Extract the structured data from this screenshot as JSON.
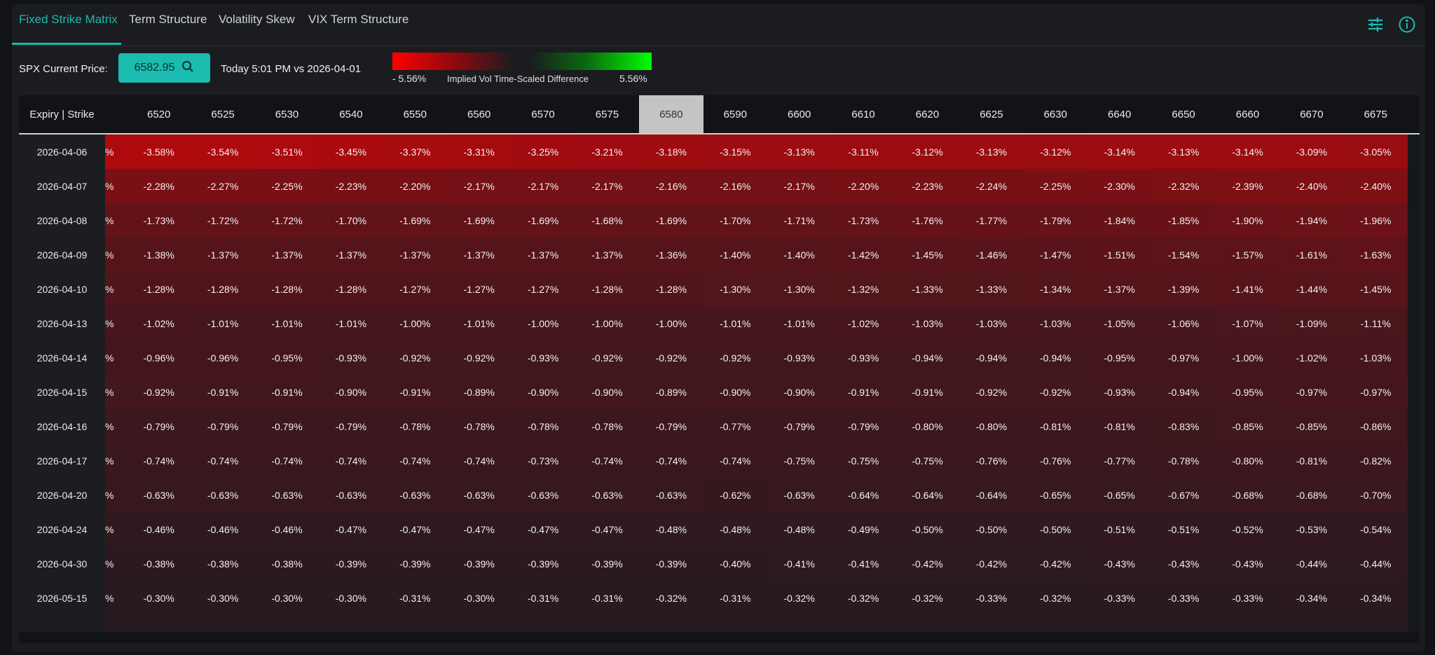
{
  "tabs": [
    {
      "label": "Fixed Strike Matrix",
      "active": true
    },
    {
      "label": "Term Structure",
      "active": false
    },
    {
      "label": "Volatility Skew",
      "active": false
    },
    {
      "label": "VIX Term Structure",
      "active": false
    }
  ],
  "toolbar": {
    "price_label": "SPX Current Price:",
    "price_value": "6582.95",
    "comparison": "Today 5:01 PM vs 2026-04-01",
    "legend_min": "- 5.56%",
    "legend_title": "Implied Vol Time-Scaled Difference",
    "legend_max": "5.56%",
    "scale_max": 5.56
  },
  "colors": {
    "accent": "#1abcb0",
    "negative": "#ff0000",
    "positive": "#00ff00",
    "highlight": "#c4c4c4"
  },
  "table": {
    "corner_label": "Expiry | Strike",
    "partial_column_text": "%",
    "highlight_strike": "6580",
    "strikes": [
      "6520",
      "6525",
      "6530",
      "6540",
      "6550",
      "6560",
      "6570",
      "6575",
      "6580",
      "6590",
      "6600",
      "6610",
      "6620",
      "6625",
      "6630",
      "6640",
      "6650",
      "6660",
      "6670",
      "6675"
    ],
    "rows": [
      {
        "expiry": "2026-04-06",
        "values": [
          "-3.58%",
          "-3.54%",
          "-3.51%",
          "-3.45%",
          "-3.37%",
          "-3.31%",
          "-3.25%",
          "-3.21%",
          "-3.18%",
          "-3.15%",
          "-3.13%",
          "-3.11%",
          "-3.12%",
          "-3.13%",
          "-3.12%",
          "-3.14%",
          "-3.13%",
          "-3.14%",
          "-3.09%",
          "-3.05%"
        ]
      },
      {
        "expiry": "2026-04-07",
        "values": [
          "-2.28%",
          "-2.27%",
          "-2.25%",
          "-2.23%",
          "-2.20%",
          "-2.17%",
          "-2.17%",
          "-2.17%",
          "-2.16%",
          "-2.16%",
          "-2.17%",
          "-2.20%",
          "-2.23%",
          "-2.24%",
          "-2.25%",
          "-2.30%",
          "-2.32%",
          "-2.39%",
          "-2.40%",
          "-2.40%"
        ]
      },
      {
        "expiry": "2026-04-08",
        "values": [
          "-1.73%",
          "-1.72%",
          "-1.72%",
          "-1.70%",
          "-1.69%",
          "-1.69%",
          "-1.69%",
          "-1.68%",
          "-1.69%",
          "-1.70%",
          "-1.71%",
          "-1.73%",
          "-1.76%",
          "-1.77%",
          "-1.79%",
          "-1.84%",
          "-1.85%",
          "-1.90%",
          "-1.94%",
          "-1.96%"
        ]
      },
      {
        "expiry": "2026-04-09",
        "values": [
          "-1.38%",
          "-1.37%",
          "-1.37%",
          "-1.37%",
          "-1.37%",
          "-1.37%",
          "-1.37%",
          "-1.37%",
          "-1.36%",
          "-1.40%",
          "-1.40%",
          "-1.42%",
          "-1.45%",
          "-1.46%",
          "-1.47%",
          "-1.51%",
          "-1.54%",
          "-1.57%",
          "-1.61%",
          "-1.63%"
        ]
      },
      {
        "expiry": "2026-04-10",
        "values": [
          "-1.28%",
          "-1.28%",
          "-1.28%",
          "-1.28%",
          "-1.27%",
          "-1.27%",
          "-1.27%",
          "-1.28%",
          "-1.28%",
          "-1.30%",
          "-1.30%",
          "-1.32%",
          "-1.33%",
          "-1.33%",
          "-1.34%",
          "-1.37%",
          "-1.39%",
          "-1.41%",
          "-1.44%",
          "-1.45%"
        ]
      },
      {
        "expiry": "2026-04-13",
        "values": [
          "-1.02%",
          "-1.01%",
          "-1.01%",
          "-1.01%",
          "-1.00%",
          "-1.01%",
          "-1.00%",
          "-1.00%",
          "-1.00%",
          "-1.01%",
          "-1.01%",
          "-1.02%",
          "-1.03%",
          "-1.03%",
          "-1.03%",
          "-1.05%",
          "-1.06%",
          "-1.07%",
          "-1.09%",
          "-1.11%"
        ]
      },
      {
        "expiry": "2026-04-14",
        "values": [
          "-0.96%",
          "-0.96%",
          "-0.95%",
          "-0.93%",
          "-0.92%",
          "-0.92%",
          "-0.93%",
          "-0.92%",
          "-0.92%",
          "-0.92%",
          "-0.93%",
          "-0.93%",
          "-0.94%",
          "-0.94%",
          "-0.94%",
          "-0.95%",
          "-0.97%",
          "-1.00%",
          "-1.02%",
          "-1.03%"
        ]
      },
      {
        "expiry": "2026-04-15",
        "values": [
          "-0.92%",
          "-0.91%",
          "-0.91%",
          "-0.90%",
          "-0.91%",
          "-0.89%",
          "-0.90%",
          "-0.90%",
          "-0.89%",
          "-0.90%",
          "-0.90%",
          "-0.91%",
          "-0.91%",
          "-0.92%",
          "-0.92%",
          "-0.93%",
          "-0.94%",
          "-0.95%",
          "-0.97%",
          "-0.97%"
        ]
      },
      {
        "expiry": "2026-04-16",
        "values": [
          "-0.79%",
          "-0.79%",
          "-0.79%",
          "-0.79%",
          "-0.78%",
          "-0.78%",
          "-0.78%",
          "-0.78%",
          "-0.79%",
          "-0.77%",
          "-0.79%",
          "-0.79%",
          "-0.80%",
          "-0.80%",
          "-0.81%",
          "-0.81%",
          "-0.83%",
          "-0.85%",
          "-0.85%",
          "-0.86%"
        ]
      },
      {
        "expiry": "2026-04-17",
        "values": [
          "-0.74%",
          "-0.74%",
          "-0.74%",
          "-0.74%",
          "-0.74%",
          "-0.74%",
          "-0.73%",
          "-0.74%",
          "-0.74%",
          "-0.74%",
          "-0.75%",
          "-0.75%",
          "-0.75%",
          "-0.76%",
          "-0.76%",
          "-0.77%",
          "-0.78%",
          "-0.80%",
          "-0.81%",
          "-0.82%"
        ]
      },
      {
        "expiry": "2026-04-20",
        "values": [
          "-0.63%",
          "-0.63%",
          "-0.63%",
          "-0.63%",
          "-0.63%",
          "-0.63%",
          "-0.63%",
          "-0.63%",
          "-0.63%",
          "-0.62%",
          "-0.63%",
          "-0.64%",
          "-0.64%",
          "-0.64%",
          "-0.65%",
          "-0.65%",
          "-0.67%",
          "-0.68%",
          "-0.68%",
          "-0.70%"
        ]
      },
      {
        "expiry": "2026-04-24",
        "values": [
          "-0.46%",
          "-0.46%",
          "-0.46%",
          "-0.47%",
          "-0.47%",
          "-0.47%",
          "-0.47%",
          "-0.47%",
          "-0.48%",
          "-0.48%",
          "-0.48%",
          "-0.49%",
          "-0.50%",
          "-0.50%",
          "-0.50%",
          "-0.51%",
          "-0.51%",
          "-0.52%",
          "-0.53%",
          "-0.54%"
        ]
      },
      {
        "expiry": "2026-04-30",
        "values": [
          "-0.38%",
          "-0.38%",
          "-0.38%",
          "-0.39%",
          "-0.39%",
          "-0.39%",
          "-0.39%",
          "-0.39%",
          "-0.39%",
          "-0.40%",
          "-0.41%",
          "-0.41%",
          "-0.42%",
          "-0.42%",
          "-0.42%",
          "-0.43%",
          "-0.43%",
          "-0.43%",
          "-0.44%",
          "-0.44%"
        ]
      },
      {
        "expiry": "2026-05-15",
        "values": [
          "-0.30%",
          "-0.30%",
          "-0.30%",
          "-0.30%",
          "-0.31%",
          "-0.30%",
          "-0.31%",
          "-0.31%",
          "-0.32%",
          "-0.31%",
          "-0.32%",
          "-0.32%",
          "-0.32%",
          "-0.33%",
          "-0.32%",
          "-0.33%",
          "-0.33%",
          "-0.33%",
          "-0.34%",
          "-0.34%"
        ]
      }
    ]
  }
}
